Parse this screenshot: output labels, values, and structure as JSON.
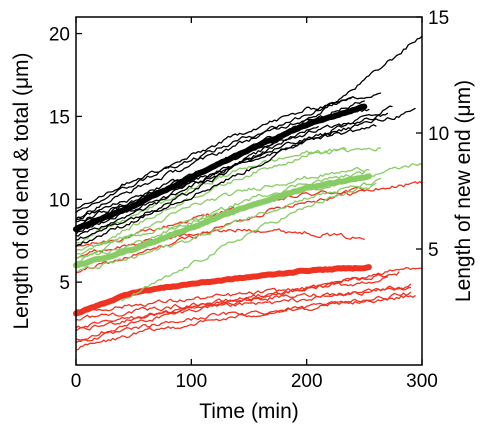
{
  "chart_data": {
    "type": "line",
    "title": "",
    "xlabel": "Time (min)",
    "ylabel": "Length of old end & total (μm)",
    "y2label": "Length of new end (μm)",
    "xlim": [
      0,
      300
    ],
    "ylim": [
      0,
      21
    ],
    "y2lim": [
      0,
      15
    ],
    "x_ticks": [
      0,
      100,
      200,
      300
    ],
    "y_ticks": [
      5,
      10,
      15,
      20
    ],
    "y2_ticks": [
      5,
      10,
      15
    ],
    "grid": false,
    "legend": "none",
    "colors": {
      "total": "#000000",
      "old_end": "#ee3322",
      "new_end": "#88cc66"
    },
    "series": [
      {
        "group": "total",
        "mean": true,
        "axis": "left",
        "x": [
          0,
          50,
          100,
          150,
          200,
          250
        ],
        "y": [
          8.2,
          9.6,
          11.3,
          13.0,
          14.5,
          15.6
        ]
      },
      {
        "group": "total",
        "axis": "left",
        "x": [
          0,
          60,
          120,
          180,
          240,
          300
        ],
        "y": [
          7.2,
          9.0,
          11.2,
          13.8,
          16.6,
          19.9
        ]
      },
      {
        "group": "total",
        "axis": "left",
        "x": [
          0,
          60,
          120,
          180,
          240,
          295
        ],
        "y": [
          8.6,
          10.2,
          11.6,
          13.2,
          14.4,
          15.3
        ]
      },
      {
        "group": "total",
        "axis": "left",
        "x": [
          0,
          50,
          100,
          150,
          200,
          265
        ],
        "y": [
          9.2,
          10.9,
          12.6,
          14.2,
          15.4,
          16.5
        ]
      },
      {
        "group": "total",
        "axis": "left",
        "x": [
          0,
          50,
          100,
          150,
          200,
          275
        ],
        "y": [
          7.8,
          8.9,
          10.2,
          11.8,
          13.6,
          15.6
        ]
      },
      {
        "group": "total",
        "axis": "left",
        "x": [
          0,
          50,
          100,
          150,
          200,
          255
        ],
        "y": [
          8.9,
          10.6,
          12.1,
          13.6,
          14.9,
          15.4
        ]
      },
      {
        "group": "total",
        "axis": "left",
        "x": [
          0,
          50,
          100,
          150,
          200,
          240
        ],
        "y": [
          9.5,
          11.2,
          12.4,
          13.8,
          15.1,
          16.3
        ]
      },
      {
        "group": "total",
        "axis": "left",
        "x": [
          0,
          50,
          100,
          150,
          200,
          260
        ],
        "y": [
          7.5,
          9.1,
          10.8,
          12.3,
          13.6,
          14.4
        ]
      },
      {
        "group": "total",
        "axis": "left",
        "x": [
          0,
          50,
          100,
          150,
          200,
          250
        ],
        "y": [
          8.4,
          9.8,
          11.4,
          13.1,
          14.7,
          15.9
        ]
      },
      {
        "group": "total",
        "axis": "left",
        "x": [
          0,
          50,
          100,
          150,
          200,
          270
        ],
        "y": [
          8.0,
          9.4,
          10.9,
          12.5,
          14.0,
          15.1
        ]
      },
      {
        "group": "total",
        "axis": "left",
        "x": [
          0,
          50,
          100,
          150,
          210
        ],
        "y": [
          8.8,
          10.1,
          11.5,
          12.8,
          14.4
        ]
      },
      {
        "group": "new_end",
        "mean": true,
        "axis": "left",
        "x": [
          0,
          50,
          100,
          150,
          200,
          255
        ],
        "y": [
          6.0,
          7.0,
          8.3,
          9.6,
          10.7,
          11.4
        ]
      },
      {
        "group": "new_end",
        "axis": "left",
        "x": [
          0,
          60,
          120,
          180,
          240,
          300
        ],
        "y": [
          6.9,
          8.0,
          9.0,
          10.1,
          11.2,
          12.2
        ]
      },
      {
        "group": "new_end",
        "axis": "left",
        "x": [
          0,
          50,
          100,
          150,
          200,
          255
        ],
        "y": [
          6.3,
          7.9,
          9.6,
          10.6,
          11.3,
          11.9
        ]
      },
      {
        "group": "new_end",
        "axis": "left",
        "x": [
          0,
          50,
          100,
          150,
          200,
          265
        ],
        "y": [
          7.4,
          9.0,
          10.6,
          12.0,
          12.8,
          13.1
        ]
      },
      {
        "group": "new_end",
        "axis": "left",
        "x": [
          0,
          50,
          100,
          150,
          200,
          235
        ],
        "y": [
          6.6,
          8.4,
          10.1,
          11.5,
          12.7,
          13.1
        ]
      },
      {
        "group": "new_end",
        "axis": "left",
        "x": [
          0,
          50,
          100,
          150,
          200,
          265
        ],
        "y": [
          5.6,
          6.5,
          7.6,
          8.9,
          10.1,
          11.1
        ]
      },
      {
        "group": "new_end",
        "axis": "left",
        "x": [
          40,
          80,
          120,
          160,
          210,
          260
        ],
        "y": [
          3.9,
          5.3,
          6.8,
          8.3,
          9.8,
          10.9
        ]
      },
      {
        "group": "new_end",
        "axis": "left",
        "x": [
          0,
          50,
          100,
          150,
          200,
          250
        ],
        "y": [
          6.2,
          7.3,
          8.6,
          10.0,
          11.0,
          11.6
        ]
      },
      {
        "group": "old_end",
        "mean": true,
        "axis": "left",
        "x": [
          0,
          50,
          100,
          150,
          200,
          255
        ],
        "y": [
          3.1,
          4.4,
          4.9,
          5.3,
          5.7,
          5.9
        ]
      },
      {
        "group": "old_end",
        "axis": "left",
        "x": [
          0,
          50,
          100,
          150,
          200,
          250
        ],
        "y": [
          7.1,
          7.8,
          8.8,
          9.6,
          10.3,
          10.6
        ]
      },
      {
        "group": "old_end",
        "axis": "left",
        "x": [
          0,
          60,
          120,
          180,
          240,
          300
        ],
        "y": [
          5.6,
          6.8,
          8.2,
          9.6,
          10.4,
          11.0
        ]
      },
      {
        "group": "old_end",
        "axis": "left",
        "x": [
          0,
          50,
          100,
          150,
          200,
          250
        ],
        "y": [
          6.6,
          7.3,
          7.9,
          8.2,
          8.0,
          7.6
        ]
      },
      {
        "group": "old_end",
        "axis": "left",
        "x": [
          0,
          60,
          120,
          180,
          240,
          300
        ],
        "y": [
          1.6,
          2.7,
          3.6,
          4.3,
          5.2,
          6.0
        ]
      },
      {
        "group": "old_end",
        "axis": "left",
        "x": [
          0,
          60,
          120,
          180,
          240,
          290
        ],
        "y": [
          2.2,
          3.0,
          3.5,
          3.8,
          4.3,
          4.7
        ]
      },
      {
        "group": "old_end",
        "axis": "left",
        "x": [
          0,
          60,
          120,
          180,
          240,
          295
        ],
        "y": [
          1.0,
          2.0,
          2.7,
          3.3,
          3.8,
          4.2
        ]
      },
      {
        "group": "old_end",
        "axis": "left",
        "x": [
          0,
          60,
          120,
          180,
          240,
          290
        ],
        "y": [
          2.8,
          3.3,
          3.8,
          4.1,
          4.4,
          4.8
        ]
      },
      {
        "group": "old_end",
        "axis": "left",
        "x": [
          0,
          60,
          120,
          180,
          240,
          290
        ],
        "y": [
          1.4,
          2.3,
          3.0,
          3.3,
          3.8,
          4.3
        ]
      },
      {
        "group": "old_end",
        "axis": "left",
        "x": [
          0,
          60,
          120,
          180,
          240,
          280
        ],
        "y": [
          2.0,
          3.0,
          3.7,
          4.4,
          5.1,
          5.6
        ]
      },
      {
        "group": "old_end",
        "axis": "left",
        "x": [
          0,
          60,
          120,
          180,
          240,
          270
        ],
        "y": [
          3.2,
          3.7,
          4.1,
          4.5,
          4.9,
          5.2
        ]
      }
    ]
  }
}
